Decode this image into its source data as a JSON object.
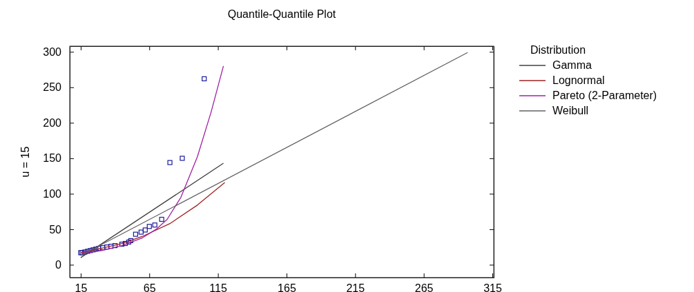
{
  "chart_data": {
    "type": "line",
    "title": "Quantile-Quantile Plot",
    "ylabel": "u = 15",
    "legend_title": "Distribution",
    "legend": "right",
    "grid": false,
    "xlim": [
      7,
      316
    ],
    "ylim": [
      -18,
      308
    ],
    "xticks": [
      15,
      65,
      115,
      165,
      215,
      265,
      315
    ],
    "yticks": [
      0,
      50,
      100,
      150,
      200,
      250,
      300
    ],
    "series": [
      {
        "type": "scatter",
        "marker": "square",
        "color": "#1a1a9c",
        "x": [
          15,
          16,
          18,
          20,
          22,
          24,
          26,
          28,
          31,
          34,
          37,
          40,
          45,
          47.5,
          50,
          51.5,
          55,
          59,
          62,
          65,
          69,
          74,
          80,
          89,
          105
        ],
        "values": [
          17,
          17,
          18,
          19,
          20,
          21,
          22,
          23,
          24,
          25,
          26,
          27,
          29,
          30,
          32,
          34,
          43,
          46,
          49,
          54,
          56,
          64,
          144,
          150,
          262
        ]
      },
      {
        "name": "Gamma",
        "color": "#404040",
        "x": [
          15,
          119
        ],
        "values": [
          10,
          143
        ]
      },
      {
        "name": "Lognormal",
        "color": "#a02020",
        "x": [
          15,
          30,
          45,
          60,
          80,
          100,
          120
        ],
        "values": [
          17,
          23,
          30,
          40,
          58,
          84,
          116
        ]
      },
      {
        "name": "Pareto (2-Parameter)",
        "color": "#a020a0",
        "x": [
          15,
          30,
          45,
          60,
          70,
          78,
          88,
          100,
          110,
          119
        ],
        "values": [
          16,
          20,
          27,
          38,
          50,
          64,
          95,
          152,
          215,
          280
        ]
      },
      {
        "name": "Weibull",
        "color": "#606060",
        "x": [
          15,
          297
        ],
        "values": [
          13,
          299
        ]
      }
    ]
  }
}
